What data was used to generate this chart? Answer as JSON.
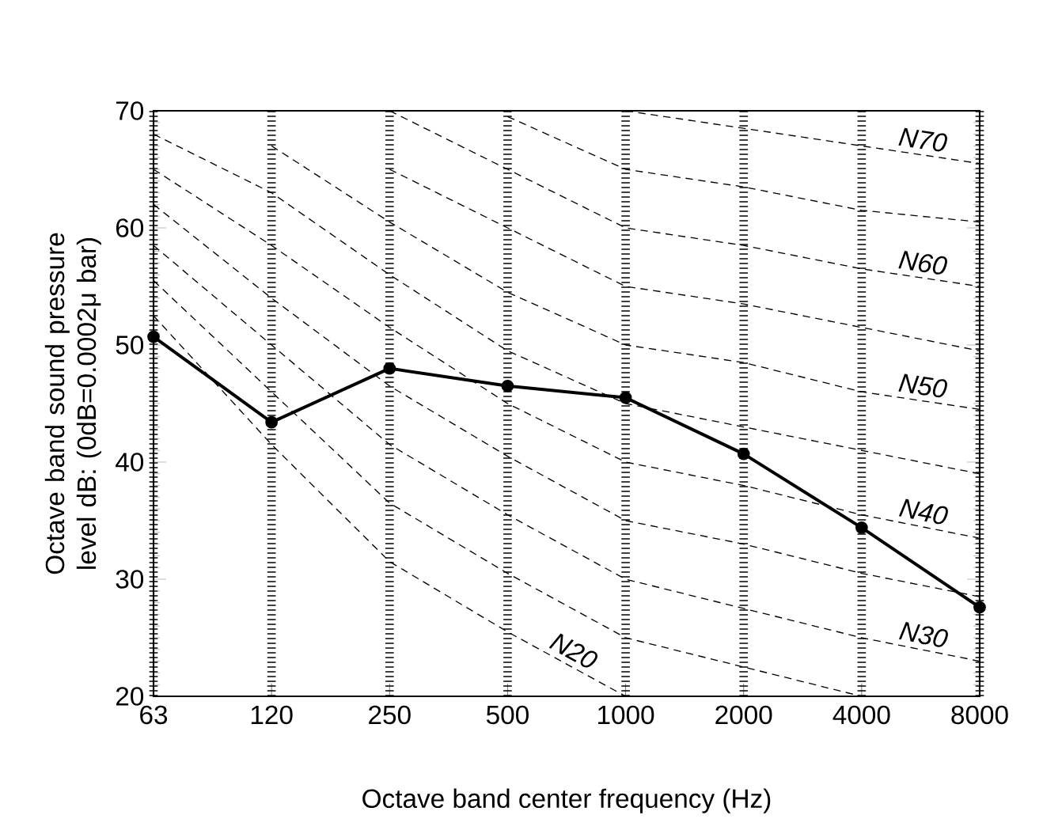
{
  "chart_data": {
    "type": "line",
    "categories": [
      "63",
      "120",
      "250",
      "500",
      "1000",
      "2000",
      "4000",
      "8000"
    ],
    "xlabel": "Octave band center frequency (Hz)",
    "ylabel": "Octave band sound pressure level dB:  (0dB=0.0002μ bar)",
    "ylim": [
      20,
      70
    ],
    "yticks": [
      20,
      30,
      40,
      50,
      60,
      70
    ],
    "grid": "x",
    "series": [
      {
        "color": "#000000",
        "marker": "none",
        "line_style": "dashed",
        "values": [
          null,
          null,
          null,
          null,
          70,
          68.5,
          67,
          65.5
        ],
        "name": "N70"
      },
      {
        "color": "#000000",
        "marker": "none",
        "line_style": "dashed",
        "values": [
          null,
          null,
          null,
          69.5,
          65,
          63.5,
          61.5,
          60.5
        ]
      },
      {
        "color": "#000000",
        "marker": "none",
        "line_style": "dashed",
        "values": [
          null,
          null,
          70,
          65,
          60,
          58.5,
          56.5,
          55
        ],
        "name": "N60"
      },
      {
        "color": "#000000",
        "marker": "none",
        "line_style": "dashed",
        "values": [
          null,
          null,
          65,
          60,
          55,
          53.5,
          51.5,
          49.5
        ]
      },
      {
        "color": "#000000",
        "marker": "none",
        "line_style": "dashed",
        "values": [
          null,
          67,
          60.5,
          54.5,
          50,
          48.5,
          46,
          44.5
        ],
        "name": "N50"
      },
      {
        "color": "#000000",
        "marker": "none",
        "line_style": "dashed",
        "values": [
          68,
          63,
          56,
          49.5,
          45,
          43,
          41,
          39
        ]
      },
      {
        "color": "#000000",
        "marker": "none",
        "line_style": "dashed",
        "values": [
          65,
          58.5,
          51.5,
          45,
          40,
          38,
          35.5,
          33.5
        ],
        "name": "N40"
      },
      {
        "color": "#000000",
        "marker": "none",
        "line_style": "dashed",
        "values": [
          62,
          54,
          46.5,
          40.5,
          35,
          33,
          30.5,
          28.5
        ]
      },
      {
        "color": "#000000",
        "marker": "none",
        "line_style": "dashed",
        "values": [
          58.5,
          50,
          41.5,
          35.5,
          30,
          27.5,
          25,
          23
        ],
        "name": "N30"
      },
      {
        "color": "#000000",
        "marker": "none",
        "line_style": "dashed",
        "values": [
          55.5,
          46,
          36.5,
          30.5,
          25,
          22.5,
          20,
          null
        ]
      },
      {
        "color": "#000000",
        "marker": "none",
        "line_style": "dashed",
        "values": [
          52.5,
          41.5,
          31.5,
          25.5,
          20,
          null,
          null,
          null
        ],
        "name": "N20"
      },
      {
        "color": "#000000",
        "marker": "circle",
        "line_style": "solid",
        "values": [
          50.7,
          43.4,
          48.0,
          46.5,
          45.5,
          40.7,
          34.4,
          27.6
        ]
      }
    ]
  }
}
